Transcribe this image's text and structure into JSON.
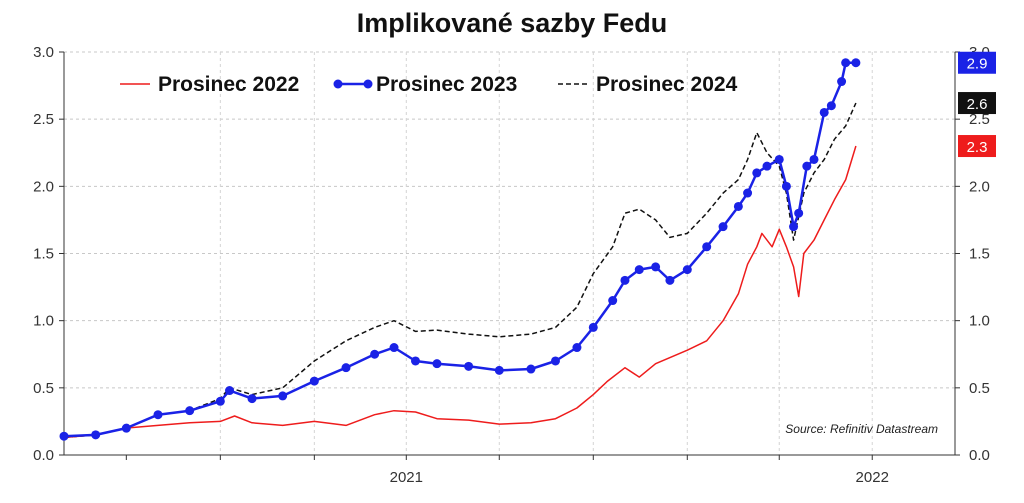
{
  "chart_data": {
    "type": "line",
    "title": "Implikované sazby Fedu",
    "source": "Source: Refinitiv Datastream",
    "x_ticks": [
      "2021",
      "2022"
    ],
    "ylim": [
      0,
      3.0
    ],
    "y_ticks": [
      "0.0",
      "0.5",
      "1.0",
      "1.5",
      "2.0",
      "2.5",
      "3.0"
    ],
    "grid": true,
    "legend_position": "top-left",
    "series": [
      {
        "name": "Prosinec 2022",
        "color": "#ee1c1c",
        "style": "solid",
        "last_label": "2.3",
        "points": [
          [
            "2020-05-01",
            0.13
          ],
          [
            "2020-06-01",
            0.15
          ],
          [
            "2020-07-01",
            0.2
          ],
          [
            "2020-08-01",
            0.22
          ],
          [
            "2020-09-01",
            0.24
          ],
          [
            "2020-10-01",
            0.25
          ],
          [
            "2020-10-15",
            0.29
          ],
          [
            "2020-11-01",
            0.24
          ],
          [
            "2020-12-01",
            0.22
          ],
          [
            "2021-01-01",
            0.25
          ],
          [
            "2021-02-01",
            0.22
          ],
          [
            "2021-03-01",
            0.3
          ],
          [
            "2021-03-20",
            0.33
          ],
          [
            "2021-04-10",
            0.32
          ],
          [
            "2021-05-01",
            0.27
          ],
          [
            "2021-06-01",
            0.26
          ],
          [
            "2021-07-01",
            0.23
          ],
          [
            "2021-08-01",
            0.24
          ],
          [
            "2021-08-25",
            0.27
          ],
          [
            "2021-09-15",
            0.35
          ],
          [
            "2021-10-01",
            0.45
          ],
          [
            "2021-10-15",
            0.55
          ],
          [
            "2021-11-01",
            0.65
          ],
          [
            "2021-11-15",
            0.58
          ],
          [
            "2021-12-01",
            0.68
          ],
          [
            "2022-01-01",
            0.78
          ],
          [
            "2022-01-20",
            0.85
          ],
          [
            "2022-02-05",
            1.0
          ],
          [
            "2022-02-20",
            1.2
          ],
          [
            "2022-03-01",
            1.42
          ],
          [
            "2022-03-10",
            1.55
          ],
          [
            "2022-03-15",
            1.65
          ],
          [
            "2022-03-25",
            1.55
          ],
          [
            "2022-04-01",
            1.68
          ],
          [
            "2022-04-08",
            1.55
          ],
          [
            "2022-04-15",
            1.4
          ],
          [
            "2022-04-20",
            1.18
          ],
          [
            "2022-04-25",
            1.5
          ],
          [
            "2022-05-05",
            1.6
          ],
          [
            "2022-05-15",
            1.75
          ],
          [
            "2022-05-25",
            1.9
          ],
          [
            "2022-06-05",
            2.05
          ],
          [
            "2022-06-15",
            2.3
          ]
        ]
      },
      {
        "name": "Prosinec 2023",
        "color": "#1a22e6",
        "style": "markers",
        "last_label": "2.9",
        "points": [
          [
            "2020-05-01",
            0.14
          ],
          [
            "2020-06-01",
            0.15
          ],
          [
            "2020-07-01",
            0.2
          ],
          [
            "2020-08-01",
            0.3
          ],
          [
            "2020-09-01",
            0.33
          ],
          [
            "2020-10-01",
            0.4
          ],
          [
            "2020-10-10",
            0.48
          ],
          [
            "2020-11-01",
            0.42
          ],
          [
            "2020-12-01",
            0.44
          ],
          [
            "2021-01-01",
            0.55
          ],
          [
            "2021-02-01",
            0.65
          ],
          [
            "2021-03-01",
            0.75
          ],
          [
            "2021-03-20",
            0.8
          ],
          [
            "2021-04-10",
            0.7
          ],
          [
            "2021-05-01",
            0.68
          ],
          [
            "2021-06-01",
            0.66
          ],
          [
            "2021-07-01",
            0.63
          ],
          [
            "2021-08-01",
            0.64
          ],
          [
            "2021-08-25",
            0.7
          ],
          [
            "2021-09-15",
            0.8
          ],
          [
            "2021-10-01",
            0.95
          ],
          [
            "2021-10-20",
            1.15
          ],
          [
            "2021-11-01",
            1.3
          ],
          [
            "2021-11-15",
            1.38
          ],
          [
            "2021-12-01",
            1.4
          ],
          [
            "2021-12-15",
            1.3
          ],
          [
            "2022-01-01",
            1.38
          ],
          [
            "2022-01-20",
            1.55
          ],
          [
            "2022-02-05",
            1.7
          ],
          [
            "2022-02-20",
            1.85
          ],
          [
            "2022-03-01",
            1.95
          ],
          [
            "2022-03-10",
            2.1
          ],
          [
            "2022-03-20",
            2.15
          ],
          [
            "2022-04-01",
            2.2
          ],
          [
            "2022-04-08",
            2.0
          ],
          [
            "2022-04-15",
            1.7
          ],
          [
            "2022-04-20",
            1.8
          ],
          [
            "2022-04-28",
            2.15
          ],
          [
            "2022-05-05",
            2.2
          ],
          [
            "2022-05-15",
            2.55
          ],
          [
            "2022-05-22",
            2.6
          ],
          [
            "2022-06-01",
            2.78
          ],
          [
            "2022-06-05",
            2.92
          ],
          [
            "2022-06-15",
            2.92
          ]
        ]
      },
      {
        "name": "Prosinec 2024",
        "color": "#111111",
        "style": "dashed",
        "last_label": "2.6",
        "points": [
          [
            "2020-05-01",
            0.13
          ],
          [
            "2020-06-01",
            0.15
          ],
          [
            "2020-07-01",
            0.2
          ],
          [
            "2020-08-01",
            0.3
          ],
          [
            "2020-09-01",
            0.33
          ],
          [
            "2020-10-01",
            0.42
          ],
          [
            "2020-10-10",
            0.5
          ],
          [
            "2020-11-01",
            0.45
          ],
          [
            "2020-12-01",
            0.5
          ],
          [
            "2021-01-01",
            0.7
          ],
          [
            "2021-02-01",
            0.85
          ],
          [
            "2021-03-01",
            0.95
          ],
          [
            "2021-03-20",
            1.0
          ],
          [
            "2021-04-10",
            0.92
          ],
          [
            "2021-05-01",
            0.93
          ],
          [
            "2021-06-01",
            0.9
          ],
          [
            "2021-07-01",
            0.88
          ],
          [
            "2021-08-01",
            0.9
          ],
          [
            "2021-08-25",
            0.95
          ],
          [
            "2021-09-15",
            1.1
          ],
          [
            "2021-10-01",
            1.35
          ],
          [
            "2021-10-20",
            1.55
          ],
          [
            "2021-11-01",
            1.8
          ],
          [
            "2021-11-15",
            1.83
          ],
          [
            "2021-12-01",
            1.75
          ],
          [
            "2021-12-15",
            1.62
          ],
          [
            "2022-01-01",
            1.65
          ],
          [
            "2022-01-20",
            1.8
          ],
          [
            "2022-02-05",
            1.95
          ],
          [
            "2022-02-20",
            2.05
          ],
          [
            "2022-03-01",
            2.2
          ],
          [
            "2022-03-10",
            2.4
          ],
          [
            "2022-03-20",
            2.25
          ],
          [
            "2022-04-01",
            2.15
          ],
          [
            "2022-04-08",
            1.95
          ],
          [
            "2022-04-15",
            1.6
          ],
          [
            "2022-04-25",
            1.95
          ],
          [
            "2022-05-05",
            2.1
          ],
          [
            "2022-05-15",
            2.2
          ],
          [
            "2022-05-25",
            2.35
          ],
          [
            "2022-06-05",
            2.45
          ],
          [
            "2022-06-15",
            2.62
          ]
        ]
      }
    ]
  }
}
